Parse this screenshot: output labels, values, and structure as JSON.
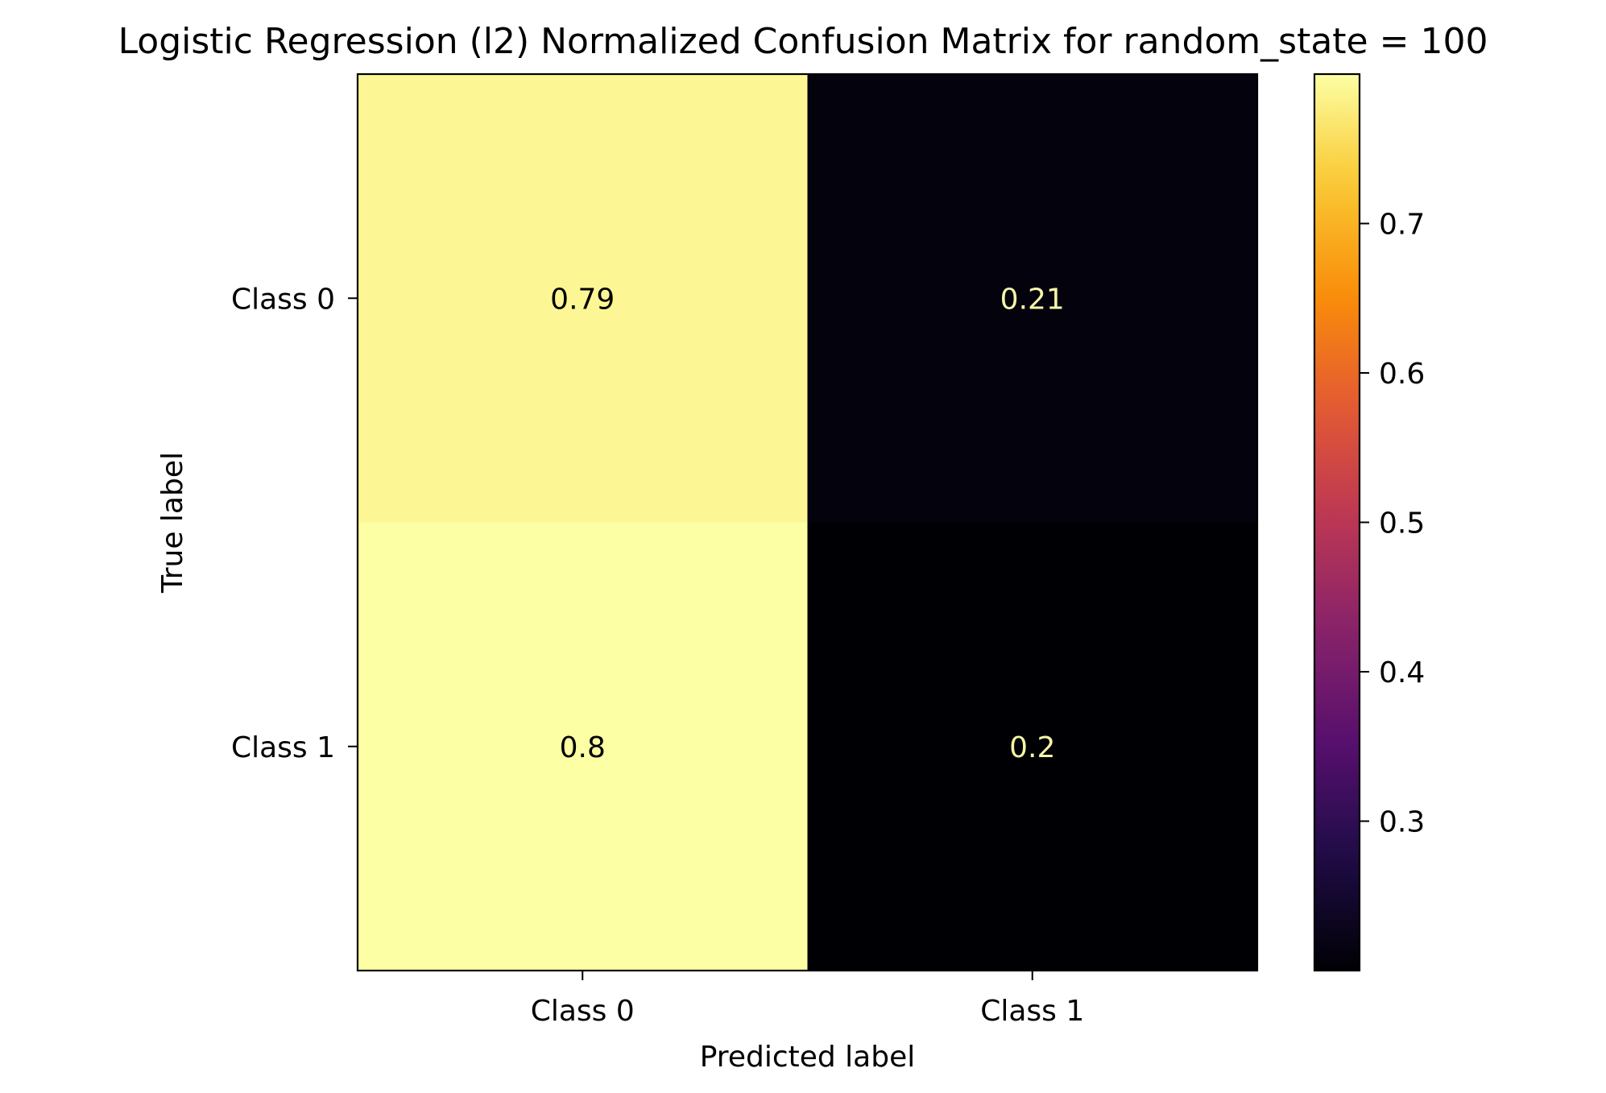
{
  "chart_data": {
    "type": "heatmap",
    "title": "Logistic Regression (l2) Normalized Confusion Matrix for random_state = 100",
    "xlabel": "Predicted label",
    "ylabel": "True label",
    "x_categories": [
      "Class 0",
      "Class 1"
    ],
    "y_categories": [
      "Class 0",
      "Class 1"
    ],
    "values": [
      [
        0.79,
        0.21
      ],
      [
        0.8,
        0.2
      ]
    ],
    "value_labels": [
      [
        "0.79",
        "0.21"
      ],
      [
        "0.8",
        "0.2"
      ]
    ],
    "colormap": "inferno",
    "colorbar": {
      "range": [
        0.2,
        0.8
      ],
      "ticks": [
        0.3,
        0.4,
        0.5,
        0.6,
        0.7
      ],
      "tick_labels": [
        "0.3",
        "0.4",
        "0.5",
        "0.6",
        "0.7"
      ]
    },
    "text_colors": {
      "on_light": "#000000",
      "on_dark": "#f5f5a8"
    },
    "grid": false
  }
}
